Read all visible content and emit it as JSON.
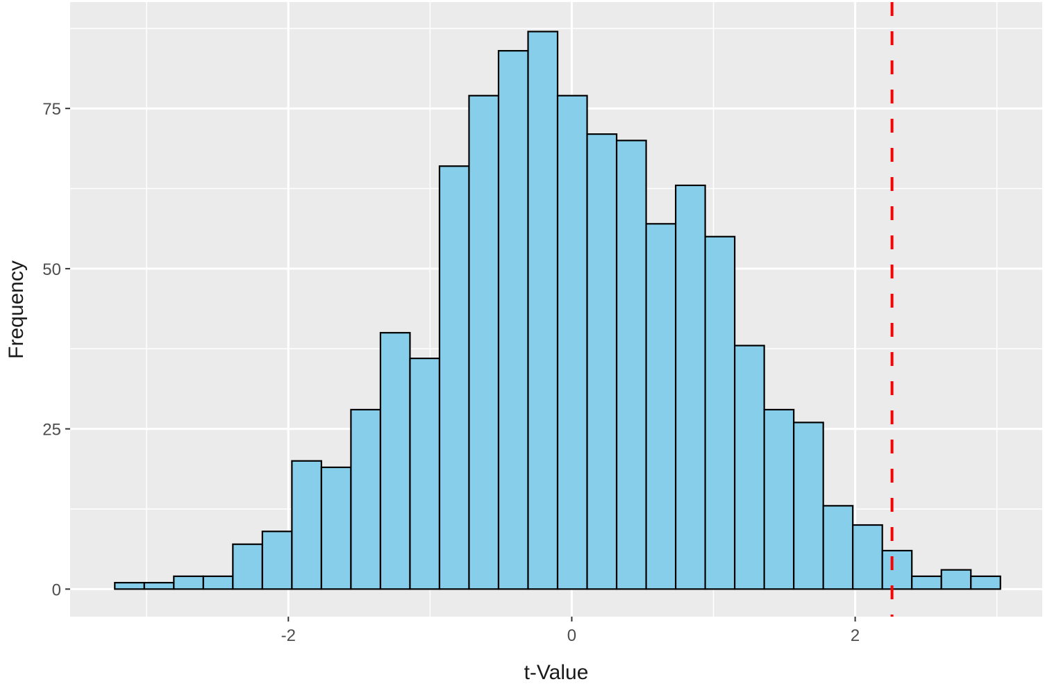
{
  "chart_data": {
    "type": "bar",
    "subtype": "histogram",
    "title": "",
    "xlabel": "t-Value",
    "ylabel": "Frequency",
    "bin_start": -3.225,
    "bin_width": 0.20833,
    "bins": 30,
    "values": [
      1,
      1,
      2,
      2,
      7,
      9,
      20,
      19,
      28,
      40,
      36,
      66,
      77,
      84,
      87,
      77,
      71,
      70,
      57,
      63,
      55,
      38,
      28,
      26,
      13,
      10,
      6,
      2,
      3,
      2
    ],
    "xlim": [
      -3.54,
      3.32
    ],
    "ylim": [
      -4.3,
      91.6
    ],
    "x_ticks": [
      -2,
      0,
      2
    ],
    "x_tick_labels": [
      "-2",
      "0",
      "2"
    ],
    "y_ticks": [
      0,
      25,
      50,
      75
    ],
    "y_tick_labels": [
      "0",
      "25",
      "50",
      "75"
    ],
    "grid": true,
    "legend": null,
    "annotations": [
      {
        "type": "vline",
        "x": 2.26,
        "style": "dashed",
        "color": "#ff0000"
      }
    ],
    "colors": {
      "bar_fill": "#87ceeb",
      "bar_outline": "#000000",
      "panel_bg": "#ebebeb",
      "grid": "#ffffff",
      "vline": "#ff0000"
    }
  }
}
